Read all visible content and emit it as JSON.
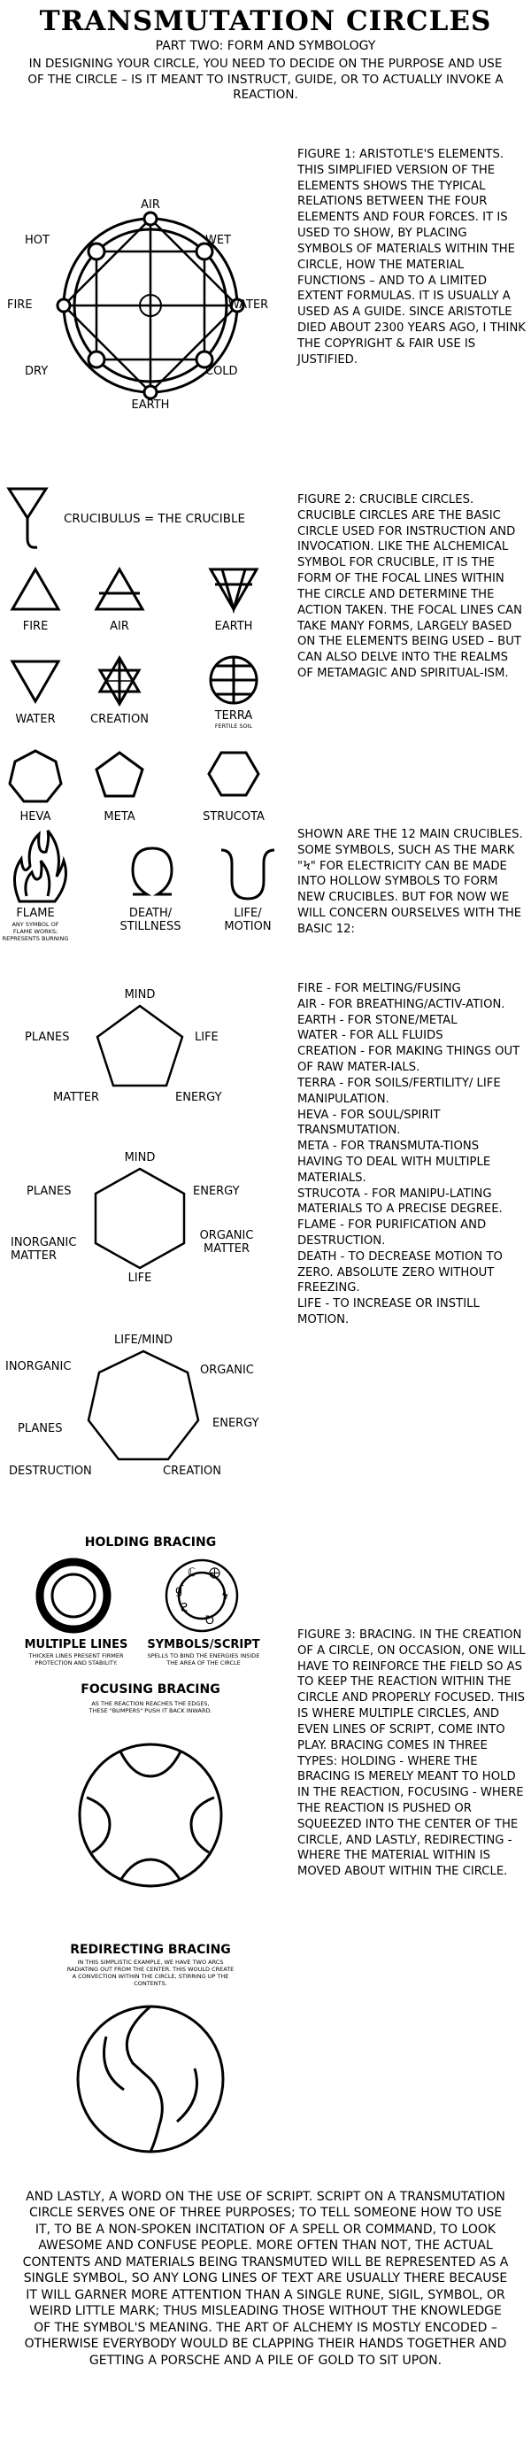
{
  "title": "TRANSMUTATION CIRCLES",
  "subtitle": "PART TWO: FORM AND SYMBOLOGY",
  "intro": "IN DESIGNING YOUR CIRCLE, YOU NEED TO DECIDE ON THE PURPOSE AND USE OF THE CIRCLE – IS IT MEANT TO INSTRUCT, GUIDE, OR TO ACTUALLY INVOKE A REACTION.",
  "figure1": {
    "labels": {
      "air": "AIR",
      "hot": "HOT",
      "wet": "WET",
      "fire": "FIRE",
      "water": "WATER",
      "dry": "DRY",
      "cold": "COLD",
      "earth": "EARTH"
    },
    "text": "FIGURE 1: ARISTOTLE'S ELEMENTS. THIS SIMPLIFIED VERSION OF THE ELEMENTS SHOWS THE TYPICAL RELATIONS BETWEEN THE FOUR ELEMENTS AND FOUR FORCES. IT IS USED TO SHOW, BY PLACING SYMBOLS OF MATERIALS WITHIN THE CIRCLE, HOW THE MATERIAL FUNCTIONS – AND TO A LIMITED EXTENT FORMULAS. IT IS USUALLY A USED AS A GUIDE. SINCE ARISTOTLE DIED ABOUT 2300 YEARS AGO, I THINK THE COPYRIGHT & FAIR USE IS JUSTIFIED."
  },
  "figure2": {
    "crucible_label": "CRUCIBULUS = THE CRUCIBLE",
    "symbols": {
      "fire": "FIRE",
      "air": "AIR",
      "earth": "EARTH",
      "water": "WATER",
      "creation": "CREATION",
      "terra": "TERRA",
      "terra_sub": "FERTILE SOIL",
      "heva": "HEVA",
      "meta": "META",
      "strucota": "STRUCOTA",
      "flame": "FLAME",
      "flame_sub": "ANY SYMBOL OF FLAME WORKS; REPRESENTS BURNING",
      "death": "DEATH/ STILLNESS",
      "life": "LIFE/ MOTION"
    },
    "text": "FIGURE 2: CRUCIBLE CIRCLES. CRUCIBLE CIRCLES ARE THE BASIC CIRCLE USED FOR INSTRUCTION AND INVOCATION. LIKE THE ALCHEMICAL SYMBOL FOR CRUCIBLE, IT IS THE FORM OF THE FOCAL LINES WITHIN THE CIRCLE AND DETERMINE THE ACTION TAKEN. THE FOCAL LINES CAN TAKE MANY FORMS, LARGELY BASED ON THE ELEMENTS BEING USED – BUT CAN ALSO DELVE INTO THE REALMS OF METAMAGIC AND SPIRITUAL-ISM.",
    "text2": "SHOWN ARE THE 12 MAIN CRUCIBLES. SOME SYMBOLS, SUCH AS THE MARK \"ϟ\" FOR ELECTRICITY CAN BE MADE INTO HOLLOW SYMBOLS TO FORM NEW CRUCIBLES. BUT FOR NOW WE WILL CONCERN OURSELVES WITH THE BASIC 12:",
    "list": [
      "FIRE - FOR MELTING/FUSING",
      "AIR - FOR BREATHING/ACTIV-ATION.",
      "EARTH - FOR STONE/METAL",
      "WATER - FOR ALL FLUIDS",
      "CREATION - FOR MAKING THINGS OUT OF RAW MATER-IALS.",
      "TERRA - FOR SOILS/FERTILITY/ LIFE MANIPULATION.",
      "HEVA - FOR SOUL/SPIRIT TRANSMUTATION.",
      "META - FOR TRANSMUTA-TIONS HAVING TO DEAL WITH MULTIPLE MATERIALS.",
      "STRUCOTA - FOR MANIPU-LATING MATERIALS TO A PRECISE DEGREE.",
      "FLAME - FOR PURIFICATION AND DESTRUCTION.",
      "DEATH - TO DECREASE MOTION TO ZERO. ABSOLUTE ZERO WITHOUT FREEZING.",
      "LIFE - TO INCREASE OR INSTILL MOTION."
    ],
    "pentagon": {
      "mind": "MIND",
      "planes": "PLANES",
      "life": "LIFE",
      "matter": "MATTER",
      "energy": "ENERGY"
    },
    "hexagon": {
      "mind": "MIND",
      "planes": "PLANES",
      "energy": "ENERGY",
      "inorganic": "INORGANIC MATTER",
      "organic": "ORGANIC MATTER",
      "life": "LIFE"
    },
    "heptagon": {
      "lifemind": "LIFE/MIND",
      "inorganic": "INORGANIC",
      "organic": "ORGANIC",
      "planes": "PLANES",
      "energy": "ENERGY",
      "destruction": "DESTRUCTION",
      "creation": "CREATION"
    }
  },
  "figure3": {
    "holding_title": "HOLDING BRACING",
    "multiple_lines": "MULTIPLE LINES",
    "multiple_lines_sub": "THICKER LINES PRESENT FIRMER PROTECTION AND STABILITY.",
    "symbols_script": "SYMBOLS/SCRIPT",
    "symbols_script_sub": "SPELLS TO BIND THE ENERGIES INSIDE THE AREA OF THE CIRCLE",
    "focusing_title": "FOCUSING BRACING",
    "focusing_sub": "AS THE REACTION REACHES THE EDGES, THESE \"BUMPERS\" PUSH IT BACK INWARD.",
    "redirecting_title": "REDIRECTING BRACING",
    "redirecting_sub": "IN THIS SIMPLISTIC EXAMPLE, WE HAVE TWO ARCS RADIATING OUT FROM THE CENTER. THIS WOULD CREATE A CONVECTION WITHIN THE CIRCLE, STIRRING UP THE CONTENTS.",
    "text": "FIGURE 3: BRACING. IN THE CREATION OF A CIRCLE, ON OCCASION, ONE WILL HAVE TO REINFORCE THE FIELD SO AS TO KEEP THE REACTION WITHIN THE CIRCLE AND PROPERLY FOCUSED. THIS IS WHERE MULTIPLE CIRCLES, AND EVEN LINES OF SCRIPT, COME INTO PLAY. BRACING COMES IN THREE TYPES: HOLDING - WHERE THE BRACING IS MERELY MEANT TO HOLD IN THE REACTION, FOCUSING - WHERE THE REACTION IS PUSHED OR SQUEEZED INTO THE CENTER OF THE CIRCLE, AND LASTLY, REDIRECTING - WHERE THE MATERIAL WITHIN IS MOVED ABOUT WITHIN THE CIRCLE."
  },
  "closing": "AND LASTLY, A WORD ON THE USE OF SCRIPT. SCRIPT ON A TRANSMUTATION CIRCLE SERVES ONE OF THREE PURPOSES; TO TELL SOMEONE HOW TO USE IT, TO BE A NON-SPOKEN INCITATION OF A SPELL OR COMMAND, TO LOOK AWESOME AND CONFUSE PEOPLE. MORE OFTEN THAN NOT, THE ACTUAL CONTENTS AND MATERIALS BEING TRANSMUTED WILL BE REPRESENTED AS A SINGLE SYMBOL, SO ANY LONG LINES OF TEXT ARE USUALLY THERE BECAUSE IT WILL GARNER MORE ATTENTION THAN A SINGLE RUNE, SIGIL, SYMBOL, OR WEIRD LITTLE MARK; THUS MISLEADING THOSE WITHOUT THE KNOWLEDGE OF THE SYMBOL'S MEANING. THE ART OF ALCHEMY IS MOSTLY ENCODED – OTHERWISE EVERYBODY WOULD BE CLAPPING THEIR HANDS TOGETHER AND GETTING A PORSCHE AND A PILE OF GOLD TO SIT UPON."
}
